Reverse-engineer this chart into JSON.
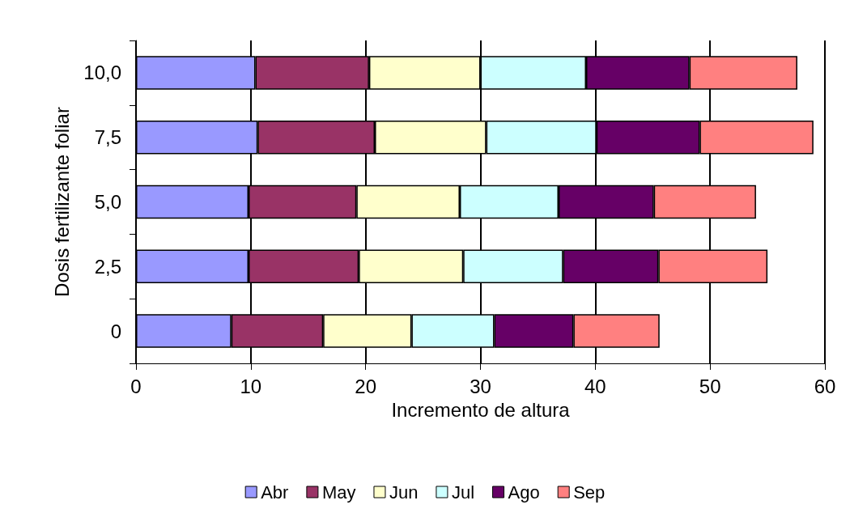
{
  "chart_data": {
    "type": "bar",
    "orientation": "horizontal",
    "stacked": true,
    "xlabel": "Incremento de altura",
    "ylabel": "Dosis fertilizante foliar",
    "categories": [
      "10,0",
      "7,5",
      "5,0",
      "2,5",
      "0"
    ],
    "series": [
      {
        "name": "Abr",
        "color": "#9999ff",
        "values": [
          10.4,
          10.6,
          9.8,
          9.8,
          8.3
        ]
      },
      {
        "name": "May",
        "color": "#993366",
        "values": [
          9.9,
          10.2,
          9.4,
          9.6,
          8.0
        ]
      },
      {
        "name": "Jun",
        "color": "#ffffcc",
        "values": [
          9.7,
          9.7,
          9.0,
          9.1,
          7.7
        ]
      },
      {
        "name": "Jul",
        "color": "#ccffff",
        "values": [
          9.2,
          9.6,
          8.6,
          8.7,
          7.2
        ]
      },
      {
        "name": "Ago",
        "color": "#660066",
        "values": [
          9.0,
          9.0,
          8.3,
          8.3,
          6.9
        ]
      },
      {
        "name": "Sep",
        "color": "#ff8080",
        "values": [
          9.4,
          9.9,
          8.9,
          9.5,
          7.5
        ]
      }
    ],
    "xlim": [
      0,
      60
    ],
    "xticks": [
      0,
      10,
      20,
      30,
      40,
      50,
      60
    ],
    "grid": "x",
    "legend": "bottom"
  }
}
